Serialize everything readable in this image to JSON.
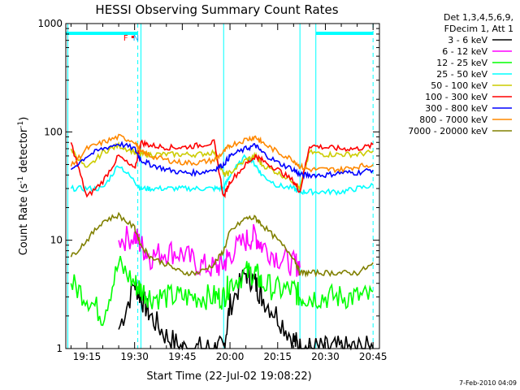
{
  "chart_data": {
    "type": "line",
    "title": "HESSI Observing Summary Count Rates",
    "xlabel": "Start Time (22-Jul-02 19:08:22)",
    "ylabel": "Count Rate (s-1 detector-1)",
    "ylabel_parts": {
      "pre": "Count Rate (s",
      "sup1": "-1",
      "mid": " detector",
      "sup2": "-1",
      "post": ")"
    },
    "yscale": "log",
    "ylim": [
      1,
      1000
    ],
    "xlim": [
      "19:08:22",
      "20:47:00"
    ],
    "x_ticks": [
      "19:15",
      "19:30",
      "19:45",
      "20:00",
      "20:15",
      "20:30",
      "20:45"
    ],
    "y_ticks": [
      "1",
      "10",
      "100",
      "1000"
    ],
    "legend_header": [
      "Det 1,3,4,5,6,9,",
      "FDecim 1, Att 1"
    ],
    "legend_position": "outside-right",
    "footer_date": "7-Feb-2010 04:09",
    "markers": [
      {
        "label": "F",
        "time": "19:28",
        "color": "#ff0000"
      },
      {
        "label": "N",
        "time": "19:31",
        "color": "#00b0ff"
      }
    ],
    "night_intervals": [
      [
        "19:08:22",
        "19:31"
      ],
      [
        "20:27",
        "20:45"
      ]
    ],
    "vertical_lines": [
      {
        "time": "19:09",
        "style": "solid"
      },
      {
        "time": "19:31",
        "style": "dashed"
      },
      {
        "time": "19:32",
        "style": "solid"
      },
      {
        "time": "19:58",
        "style": "solid"
      },
      {
        "time": "20:22",
        "style": "solid"
      },
      {
        "time": "20:27",
        "style": "solid"
      },
      {
        "time": "20:45",
        "style": "dashed"
      }
    ],
    "x": [
      "19:10",
      "19:15",
      "19:20",
      "19:25",
      "19:30",
      "19:32",
      "19:35",
      "19:40",
      "19:45",
      "19:50",
      "19:55",
      "19:58",
      "20:00",
      "20:05",
      "20:08",
      "20:10",
      "20:15",
      "20:20",
      "20:22",
      "20:25",
      "20:30",
      "20:35",
      "20:40",
      "20:45"
    ],
    "series": [
      {
        "name": "3 - 6 keV",
        "color": "#000000",
        "values": [
          null,
          null,
          null,
          1.5,
          4,
          3,
          2,
          1.3,
          1,
          1,
          1,
          1,
          2.5,
          5,
          4,
          3,
          2,
          1.2,
          1,
          1,
          1,
          1,
          1,
          1
        ]
      },
      {
        "name": "6 - 12 keV",
        "color": "#ff00ff",
        "values": [
          null,
          null,
          null,
          10,
          11,
          9,
          7,
          8,
          7.5,
          6,
          5.5,
          6,
          7.5,
          10,
          11,
          9,
          7,
          6,
          6,
          null,
          null,
          null,
          null,
          null
        ]
      },
      {
        "name": "12 - 25 keV",
        "color": "#00ff00",
        "values": [
          4,
          3,
          2,
          6,
          4,
          3.5,
          3,
          3,
          3,
          3,
          3,
          3,
          4,
          5,
          5,
          4,
          3.5,
          3.5,
          3,
          3,
          3,
          3,
          3,
          3
        ]
      },
      {
        "name": "25 - 50 keV",
        "color": "#00ffff",
        "values": [
          30,
          30,
          30,
          50,
          35,
          30,
          30,
          30,
          30,
          30,
          30,
          30,
          40,
          60,
          50,
          40,
          32,
          30,
          28,
          28,
          28,
          28,
          30,
          32
        ]
      },
      {
        "name": "50 - 100 keV",
        "color": "#cccc00",
        "values": [
          70,
          45,
          65,
          75,
          65,
          62,
          62,
          62,
          62,
          62,
          65,
          40,
          42,
          55,
          60,
          50,
          42,
          35,
          30,
          65,
          62,
          62,
          62,
          65
        ]
      },
      {
        "name": "100 - 300 keV",
        "color": "#ff0000",
        "values": [
          80,
          25,
          35,
          60,
          45,
          80,
          75,
          72,
          72,
          75,
          80,
          25,
          35,
          50,
          60,
          55,
          45,
          35,
          28,
          75,
          72,
          70,
          70,
          75
        ]
      },
      {
        "name": "300 - 800 keV",
        "color": "#0000ff",
        "values": [
          45,
          60,
          70,
          78,
          70,
          55,
          50,
          45,
          42,
          42,
          45,
          50,
          60,
          70,
          75,
          65,
          52,
          45,
          40,
          40,
          40,
          42,
          42,
          45
        ]
      },
      {
        "name": "800 - 7000 keV",
        "color": "#ff8800",
        "values": [
          48,
          70,
          80,
          90,
          82,
          65,
          60,
          55,
          52,
          52,
          55,
          65,
          75,
          85,
          90,
          80,
          65,
          55,
          48,
          45,
          45,
          45,
          48,
          50
        ]
      },
      {
        "name": "7000 - 20000 keV",
        "color": "#808000",
        "values": [
          7,
          10,
          15,
          17,
          13,
          9,
          7,
          6,
          5,
          5,
          6,
          8,
          12,
          16,
          16,
          14,
          10,
          7,
          5,
          5,
          5,
          5,
          5,
          6
        ]
      }
    ]
  }
}
